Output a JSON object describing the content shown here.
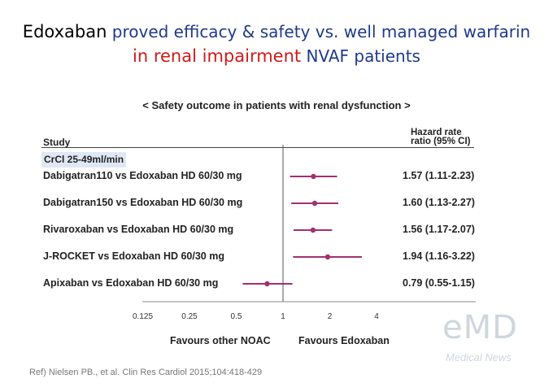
{
  "title": {
    "line1_drug": "Edoxaban",
    "line1_rest": " proved efficacy & safety vs. well managed warfarin",
    "line2_highlight": "in renal impairment",
    "line2_rest": " NVAF patients"
  },
  "chart_data": {
    "type": "forest",
    "subtitle": "< Safety outcome in patients with renal dysfunction >",
    "column_study": "Study",
    "column_hr_line1": "Hazard rate",
    "column_hr_line2": "ratio (95% CI)",
    "subgroup": "CrCl 25-49ml/min",
    "x_scale": "log",
    "x_ticks": [
      0.125,
      0.25,
      0.5,
      1,
      2,
      4
    ],
    "x_tick_labels": [
      "0.125",
      "0.25",
      "0.5",
      "1",
      "2",
      "4"
    ],
    "reference_line": 1,
    "favours_left": "Favours other NOAC",
    "favours_right": "Favours Edoxaban",
    "marker_color": "#a3306f",
    "rows": [
      {
        "label": "Dabigatran110  vs Edoxaban HD 60/30 mg",
        "hr": 1.57,
        "lo": 1.11,
        "hi": 2.23,
        "text": "1.57 (1.11-2.23)"
      },
      {
        "label": "Dabigatran150  vs Edoxaban HD 60/30 mg",
        "hr": 1.6,
        "lo": 1.13,
        "hi": 2.27,
        "text": "1.60 (1.13-2.27)"
      },
      {
        "label": "Rivaroxaban  vs Edoxaban HD 60/30 mg",
        "hr": 1.56,
        "lo": 1.17,
        "hi": 2.07,
        "text": "1.56 (1.17-2.07)"
      },
      {
        "label": "J-ROCKET vs Edoxaban HD 60/30 mg",
        "hr": 1.94,
        "lo": 1.16,
        "hi": 3.22,
        "text": "1.94 (1.16-3.22)"
      },
      {
        "label": "Apixaban  vs Edoxaban HD 60/30 mg",
        "hr": 0.79,
        "lo": 0.55,
        "hi": 1.15,
        "text": "0.79 (0.55-1.15)"
      }
    ]
  },
  "reference": "Ref) Nielsen PB., et al. Clin Res Cardiol 2015;104:418-429",
  "logo": {
    "main": "eMD",
    "sub": "Medical News"
  }
}
